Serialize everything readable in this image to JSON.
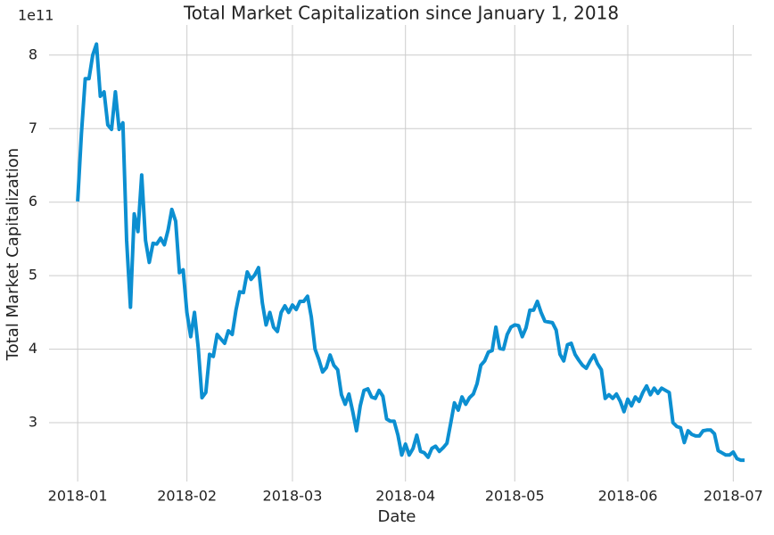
{
  "chart_data": {
    "type": "line",
    "title": "Total Market Capitalization since January 1, 2018",
    "xlabel": "Date",
    "ylabel": "Total Market Capitalization",
    "y_offset_label": "1e11",
    "series": [
      {
        "name": "Total Market Capitalization",
        "color": "#0c8fd1",
        "values": [
          6.01,
          6.93,
          7.68,
          7.68,
          8.0,
          8.15,
          7.44,
          7.5,
          7.05,
          6.99,
          7.5,
          6.99,
          7.08,
          5.48,
          4.57,
          5.84,
          5.6,
          6.37,
          5.48,
          5.18,
          5.44,
          5.43,
          5.51,
          5.42,
          5.62,
          5.9,
          5.74,
          5.04,
          5.08,
          4.5,
          4.17,
          4.5,
          4.02,
          3.34,
          3.41,
          3.93,
          3.9,
          4.2,
          4.14,
          4.08,
          4.25,
          4.2,
          4.53,
          4.78,
          4.77,
          5.05,
          4.95,
          5.01,
          5.11,
          4.63,
          4.33,
          4.5,
          4.3,
          4.24,
          4.5,
          4.59,
          4.5,
          4.6,
          4.54,
          4.65,
          4.65,
          4.72,
          4.44,
          4.0,
          3.86,
          3.69,
          3.75,
          3.92,
          3.78,
          3.72,
          3.38,
          3.25,
          3.39,
          3.15,
          2.89,
          3.23,
          3.44,
          3.46,
          3.35,
          3.33,
          3.44,
          3.36,
          3.05,
          3.02,
          3.02,
          2.83,
          2.56,
          2.71,
          2.56,
          2.65,
          2.83,
          2.61,
          2.59,
          2.53,
          2.65,
          2.68,
          2.61,
          2.66,
          2.72,
          2.99,
          3.27,
          3.17,
          3.35,
          3.25,
          3.34,
          3.39,
          3.53,
          3.78,
          3.84,
          3.96,
          3.98,
          4.3,
          4.01,
          4.0,
          4.2,
          4.3,
          4.33,
          4.32,
          4.17,
          4.29,
          4.53,
          4.53,
          4.65,
          4.5,
          4.38,
          4.37,
          4.36,
          4.26,
          3.93,
          3.84,
          4.06,
          4.08,
          3.93,
          3.85,
          3.78,
          3.74,
          3.84,
          3.92,
          3.8,
          3.72,
          3.33,
          3.38,
          3.33,
          3.39,
          3.29,
          3.15,
          3.32,
          3.23,
          3.35,
          3.29,
          3.41,
          3.5,
          3.38,
          3.47,
          3.4,
          3.47,
          3.44,
          3.41,
          3.0,
          2.95,
          2.93,
          2.73,
          2.89,
          2.84,
          2.82,
          2.82,
          2.89,
          2.9,
          2.9,
          2.85,
          2.62,
          2.59,
          2.56,
          2.56,
          2.6,
          2.51,
          2.49,
          2.49
        ]
      }
    ],
    "xlim": [
      -7.6,
      177
    ],
    "xticks": [
      {
        "value": 0,
        "label": "2018-01"
      },
      {
        "value": 29,
        "label": "2018-02"
      },
      {
        "value": 57,
        "label": "2018-03"
      },
      {
        "value": 87,
        "label": "2018-04"
      },
      {
        "value": 116,
        "label": "2018-05"
      },
      {
        "value": 146,
        "label": "2018-06"
      },
      {
        "value": 174,
        "label": "2018-07"
      }
    ],
    "ylim": [
      2.2,
      8.41
    ],
    "yticks": [
      3,
      4,
      5,
      6,
      7,
      8
    ],
    "grid": true
  }
}
